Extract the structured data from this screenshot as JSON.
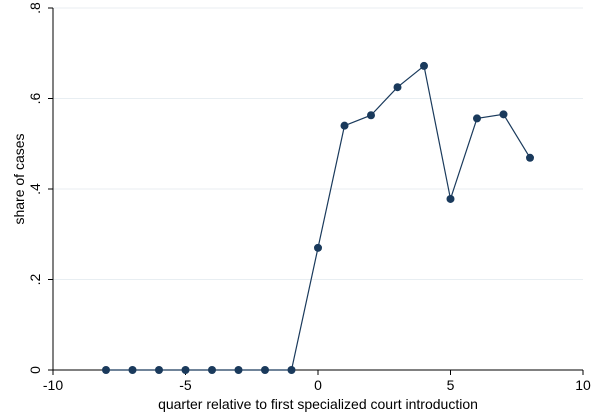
{
  "chart_data": {
    "type": "line",
    "title": "",
    "xlabel": "quarter relative to first specialized court introduction",
    "ylabel": "share of cases",
    "xlim": [
      -10,
      10
    ],
    "ylim": [
      0,
      0.8
    ],
    "xticks": [
      -10,
      -5,
      0,
      5,
      10
    ],
    "yticks": [
      0,
      0.2,
      0.4,
      0.6,
      0.8
    ],
    "xtick_labels": [
      "-10",
      "-5",
      "0",
      "5",
      "10"
    ],
    "ytick_labels": [
      "0",
      ".2",
      ".4",
      ".6",
      ".8"
    ],
    "grid": true,
    "legend": "none",
    "series": [
      {
        "color": "#1a3a5c",
        "marker": "circle",
        "x": [
          -8,
          -7,
          -6,
          -5,
          -4,
          -3,
          -2,
          -1,
          0,
          1,
          2,
          3,
          4,
          5,
          6,
          7,
          8
        ],
        "y": [
          0,
          0,
          0,
          0,
          0,
          0,
          0,
          0,
          0.27,
          0.54,
          0.563,
          0.625,
          0.672,
          0.378,
          0.556,
          0.565,
          0.469
        ]
      }
    ]
  }
}
